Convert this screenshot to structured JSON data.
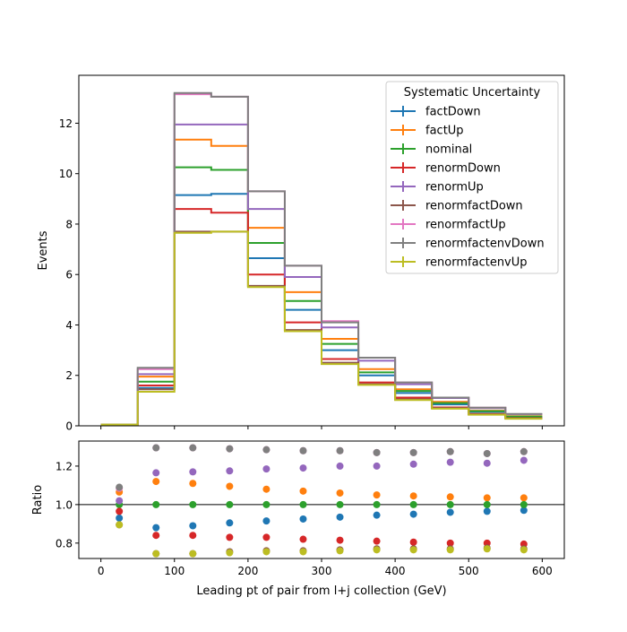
{
  "chart_data": [
    {
      "type": "line",
      "step": true,
      "ylabel": "Events",
      "xlim": [
        -30,
        630
      ],
      "ylim": [
        0,
        13.9
      ],
      "x_ticks": [
        0,
        100,
        200,
        300,
        400,
        500,
        600
      ],
      "y_ticks": [
        0,
        2,
        4,
        6,
        8,
        10,
        12
      ],
      "bin_edges": [
        0,
        50,
        100,
        150,
        200,
        250,
        300,
        350,
        400,
        450,
        500,
        550,
        600
      ],
      "legend": {
        "title": "Systematic Uncertainty",
        "placement": "top-right"
      },
      "series": [
        {
          "name": "factDown",
          "color": "#1f77b4",
          "values": [
            0.05,
            1.5,
            9.15,
            9.2,
            6.65,
            4.6,
            3.0,
            2.0,
            1.3,
            0.85,
            0.55,
            0.35
          ]
        },
        {
          "name": "factUp",
          "color": "#ff7f0e",
          "values": [
            0.05,
            1.95,
            11.35,
            11.1,
            7.85,
            5.3,
            3.45,
            2.25,
            1.45,
            0.95,
            0.6,
            0.38
          ]
        },
        {
          "name": "nominal",
          "color": "#2ca02c",
          "values": [
            0.05,
            1.75,
            10.25,
            10.15,
            7.25,
            4.95,
            3.25,
            2.12,
            1.38,
            0.9,
            0.58,
            0.37
          ]
        },
        {
          "name": "renormDown",
          "color": "#d62728",
          "values": [
            0.05,
            1.6,
            8.6,
            8.45,
            6.0,
            4.1,
            2.65,
            1.72,
            1.12,
            0.73,
            0.47,
            0.3
          ]
        },
        {
          "name": "renormUp",
          "color": "#9467bd",
          "values": [
            0.05,
            2.05,
            11.95,
            11.95,
            8.6,
            5.9,
            3.9,
            2.58,
            1.65,
            1.1,
            0.7,
            0.46
          ]
        },
        {
          "name": "renormfactDown",
          "color": "#8c564b",
          "values": [
            0.05,
            1.45,
            7.7,
            7.7,
            5.55,
            3.8,
            2.5,
            1.65,
            1.05,
            0.7,
            0.45,
            0.29
          ]
        },
        {
          "name": "renormfactUp",
          "color": "#e377c2",
          "values": [
            0.05,
            2.25,
            13.15,
            13.05,
            9.3,
            6.35,
            4.15,
            2.7,
            1.72,
            1.12,
            0.72,
            0.46
          ]
        },
        {
          "name": "renormfactenvDown",
          "color": "#7f7f7f",
          "values": [
            0.05,
            2.3,
            13.2,
            13.05,
            9.3,
            6.35,
            4.1,
            2.7,
            1.72,
            1.12,
            0.72,
            0.47
          ]
        },
        {
          "name": "renormfactenvUp",
          "color": "#bcbd22",
          "values": [
            0.05,
            1.35,
            7.65,
            7.7,
            5.5,
            3.75,
            2.45,
            1.62,
            1.02,
            0.68,
            0.44,
            0.28
          ]
        }
      ]
    },
    {
      "type": "scatter",
      "xlabel": "Leading pt of pair from l+j collection (GeV)",
      "ylabel": "Ratio",
      "xlim": [
        -30,
        630
      ],
      "ylim": [
        0.72,
        1.33
      ],
      "x_ticks": [
        0,
        100,
        200,
        300,
        400,
        500,
        600
      ],
      "y_ticks": [
        "0.8",
        "1.0",
        "1.2"
      ],
      "reference_line": 1.0,
      "x": [
        25,
        75,
        125,
        175,
        225,
        275,
        325,
        375,
        425,
        475,
        525,
        575
      ],
      "series": [
        {
          "name": "factDown",
          "color": "#1f77b4",
          "values": [
            0.93,
            0.88,
            0.89,
            0.905,
            0.915,
            0.925,
            0.935,
            0.945,
            0.95,
            0.96,
            0.965,
            0.97
          ]
        },
        {
          "name": "factUp",
          "color": "#ff7f0e",
          "values": [
            1.065,
            1.12,
            1.11,
            1.095,
            1.08,
            1.07,
            1.06,
            1.05,
            1.045,
            1.04,
            1.035,
            1.035
          ]
        },
        {
          "name": "nominal",
          "color": "#2ca02c",
          "values": [
            1.0,
            1.0,
            1.0,
            1.0,
            1.0,
            1.0,
            1.0,
            1.0,
            1.0,
            1.0,
            1.0,
            1.0
          ]
        },
        {
          "name": "renormDown",
          "color": "#d62728",
          "values": [
            0.965,
            0.84,
            0.84,
            0.83,
            0.83,
            0.82,
            0.815,
            0.81,
            0.805,
            0.8,
            0.8,
            0.795
          ]
        },
        {
          "name": "renormUp",
          "color": "#9467bd",
          "values": [
            1.02,
            1.165,
            1.17,
            1.175,
            1.185,
            1.19,
            1.2,
            1.2,
            1.21,
            1.22,
            1.215,
            1.23
          ]
        },
        {
          "name": "renormfactDown",
          "color": "#8c564b",
          "values": [
            0.895,
            0.745,
            0.745,
            0.755,
            0.76,
            0.76,
            0.765,
            0.77,
            0.77,
            0.77,
            0.775,
            0.77
          ]
        },
        {
          "name": "renormfactUp",
          "color": "#e377c2",
          "values": [
            1.085,
            1.295,
            1.295,
            1.29,
            1.285,
            1.28,
            1.28,
            1.27,
            1.27,
            1.275,
            1.265,
            1.275
          ]
        },
        {
          "name": "renormfactenvDown",
          "color": "#7f7f7f",
          "values": [
            1.09,
            1.295,
            1.295,
            1.29,
            1.285,
            1.28,
            1.28,
            1.27,
            1.27,
            1.275,
            1.265,
            1.275
          ]
        },
        {
          "name": "renormfactenvUp",
          "color": "#bcbd22",
          "values": [
            0.895,
            0.745,
            0.745,
            0.75,
            0.755,
            0.755,
            0.76,
            0.765,
            0.765,
            0.765,
            0.77,
            0.765
          ]
        }
      ]
    }
  ]
}
